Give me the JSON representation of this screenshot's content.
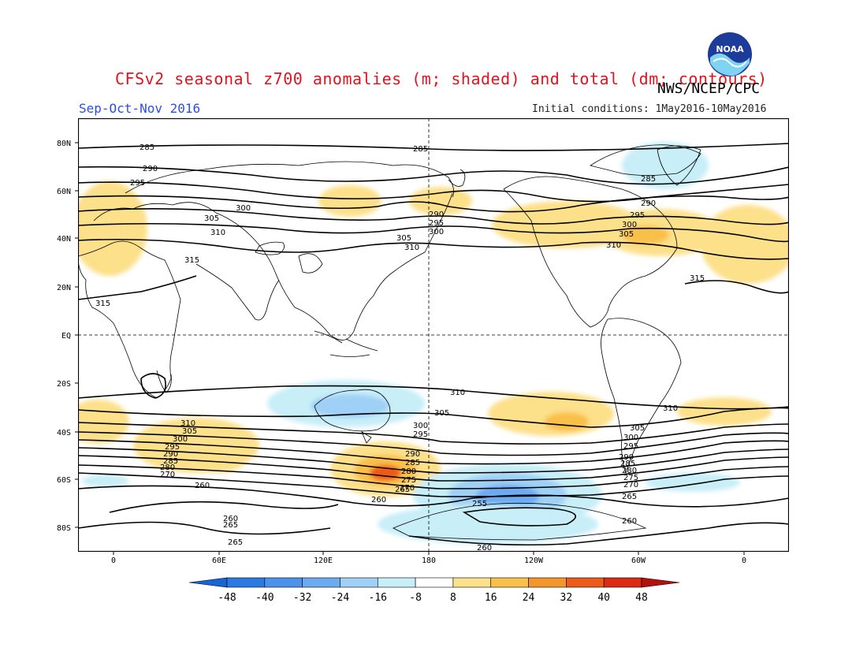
{
  "title": "CFSv2 seasonal z700 anomalies (m; shaded) and total (dm; contours)",
  "org": "NWS/NCEP/CPC",
  "season": "Sep-Oct-Nov 2016",
  "initial_conditions": "Initial conditions: 1May2016-10May2016",
  "logo_icon": "noaa-logo-icon",
  "logo_text": "NOAA",
  "lat_labels": [
    "80N",
    "60N",
    "40N",
    "20N",
    "EQ",
    "20S",
    "40S",
    "60S",
    "80S"
  ],
  "lon_labels": [
    "0",
    "60E",
    "120E",
    "180",
    "120W",
    "60W",
    "0"
  ],
  "colorbar": {
    "labels": [
      "-48",
      "-40",
      "-32",
      "-24",
      "-16",
      "-8",
      "8",
      "16",
      "24",
      "32",
      "40",
      "48"
    ],
    "colors": [
      "#1565d8",
      "#2a7ae6",
      "#4a92ee",
      "#6cabf2",
      "#9fd0f5",
      "#c8eef8",
      "#ffffff",
      "#fde08a",
      "#f9c04a",
      "#f5962c",
      "#ee5a17",
      "#dd2a10",
      "#b3120b"
    ]
  },
  "contour_labels": [
    "285",
    "290",
    "295",
    "300",
    "305",
    "310",
    "315",
    "260",
    "255",
    "265",
    "270",
    "275",
    "280"
  ]
}
